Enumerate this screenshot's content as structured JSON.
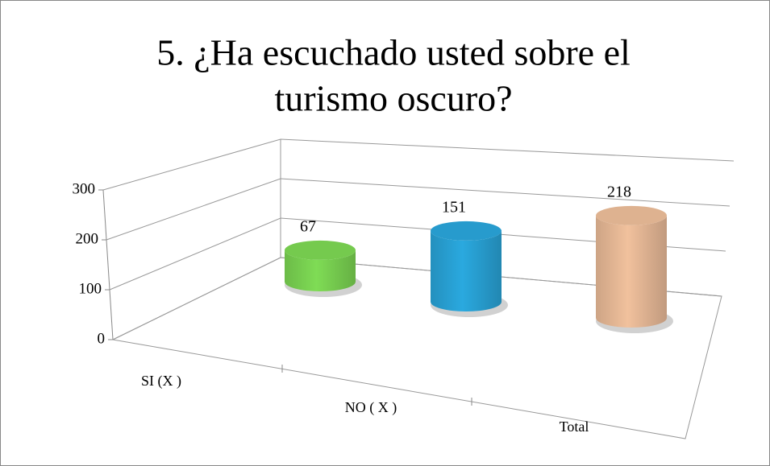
{
  "chart_data": {
    "type": "bar3d",
    "title": [
      "5. ¿Ha escuchado usted sobre el",
      "turismo oscuro?"
    ],
    "categories": [
      "SI (X )",
      "NO ( X )",
      "Total"
    ],
    "values": [
      67,
      151,
      218
    ],
    "colors": [
      "#7fdc55",
      "#2aa9df",
      "#f1c19d"
    ],
    "ylim": [
      0,
      300
    ],
    "yticks": [
      0,
      100,
      200,
      300
    ],
    "grid": true
  }
}
